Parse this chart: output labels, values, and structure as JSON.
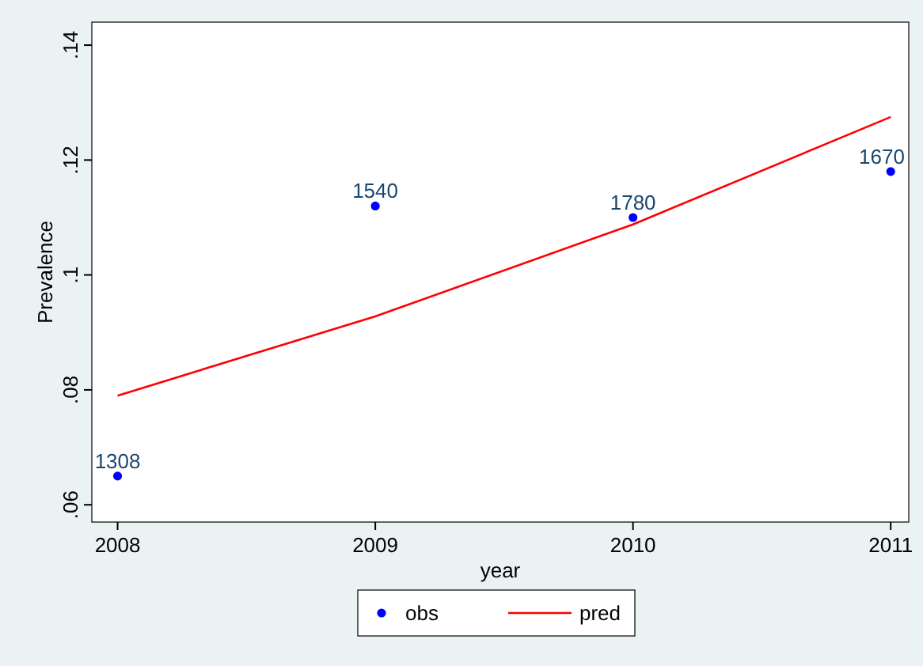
{
  "chart_data": {
    "type": "scatter",
    "xlabel": "year",
    "ylabel": "Prevalence",
    "x": [
      2008,
      2009,
      2010,
      2011
    ],
    "series": [
      {
        "name": "obs",
        "color": "#0000ff",
        "values": [
          0.065,
          0.112,
          0.11,
          0.118
        ],
        "marker": "circle"
      },
      {
        "name": "pred",
        "type": "line",
        "color": "#ff0000",
        "values": [
          0.079,
          0.0928,
          0.1088,
          0.1275
        ],
        "marker": "none",
        "line_style": "solid"
      }
    ],
    "xlim": [
      2007.9,
      2011.07
    ],
    "xticks": [
      2008,
      2009,
      2010,
      2011
    ],
    "ylim": [
      0.057,
      0.144
    ],
    "yticks": [
      {
        "value": 0.06,
        "label": ".06"
      },
      {
        "value": 0.08,
        "label": ".08"
      },
      {
        "value": 0.1,
        "label": ".1"
      },
      {
        "value": 0.12,
        "label": ".12"
      },
      {
        "value": 0.14,
        "label": ".14"
      }
    ],
    "annotations": [
      {
        "text": "1308",
        "x": 2008,
        "y": 0.065
      },
      {
        "text": "1540",
        "x": 2009,
        "y": 0.112
      },
      {
        "text": "1780",
        "x": 2010,
        "y": 0.11
      },
      {
        "text": "1670",
        "x": 2011,
        "y": 0.118
      }
    ],
    "grid": false,
    "legend": "bottom"
  }
}
